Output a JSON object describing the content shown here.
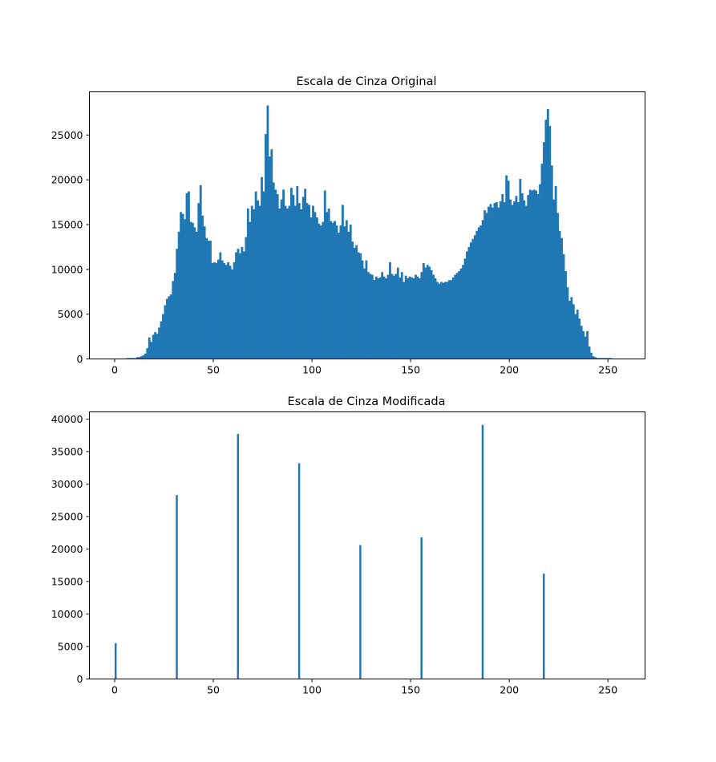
{
  "colors": {
    "bar": "#1f77b4",
    "axes": "#000000",
    "background": "#ffffff"
  },
  "chart_data": [
    {
      "type": "bar",
      "title": "Escala de Cinza Original",
      "xlabel": "",
      "ylabel": "",
      "xlim": [
        -12.8,
        268.8
      ],
      "ylim": [
        0,
        29820
      ],
      "xticks": [
        0,
        50,
        100,
        150,
        200,
        250
      ],
      "yticks": [
        0,
        5000,
        10000,
        15000,
        20000,
        25000
      ],
      "grid": false,
      "bin_start": 0,
      "bin_width": 1,
      "values": [
        0,
        0,
        0,
        0,
        0,
        0,
        100,
        100,
        100,
        100,
        100,
        200,
        200,
        300,
        400,
        600,
        1200,
        2400,
        1900,
        2700,
        3000,
        2800,
        3500,
        4200,
        5000,
        6000,
        6700,
        7000,
        7200,
        8700,
        9600,
        12300,
        14200,
        16400,
        16200,
        15600,
        18500,
        18700,
        15300,
        15200,
        14700,
        14200,
        17400,
        19400,
        16000,
        14800,
        13500,
        13200,
        13200,
        10700,
        10800,
        10700,
        11100,
        11900,
        11000,
        10700,
        10500,
        10800,
        10400,
        10000,
        10800,
        11900,
        12300,
        11800,
        12500,
        12000,
        13600,
        16800,
        15300,
        17100,
        16700,
        18700,
        17700,
        17100,
        20300,
        18700,
        25100,
        28300,
        22600,
        23400,
        19700,
        18900,
        18400,
        16800,
        17800,
        18900,
        17100,
        16800,
        17100,
        19100,
        18300,
        17100,
        19300,
        17400,
        16700,
        18100,
        19000,
        17400,
        17200,
        15800,
        17100,
        16400,
        15800,
        15100,
        14900,
        15300,
        18800,
        16400,
        16800,
        15400,
        15200,
        15400,
        14900,
        14100,
        14900,
        17200,
        14800,
        15500,
        14200,
        15000,
        13100,
        12400,
        12700,
        11900,
        11800,
        11000,
        10100,
        11000,
        9700,
        9500,
        9400,
        8800,
        9200,
        9000,
        9100,
        9700,
        9200,
        9000,
        9400,
        10800,
        9500,
        9300,
        9500,
        10200,
        9100,
        9700,
        8600,
        9300,
        9000,
        9200,
        9100,
        9000,
        9400,
        9200,
        9000,
        9700,
        10700,
        10200,
        10500,
        10300,
        9900,
        9400,
        9000,
        8600,
        8400,
        8600,
        8500,
        8600,
        8600,
        8800,
        8800,
        9100,
        9400,
        9600,
        9800,
        10100,
        10500,
        11200,
        12000,
        12500,
        13000,
        13400,
        13800,
        14300,
        14700,
        14900,
        15500,
        16600,
        16300,
        17000,
        17300,
        16900,
        17400,
        17500,
        16900,
        17600,
        18400,
        17500,
        20500,
        19900,
        17800,
        17200,
        17600,
        18200,
        17500,
        20100,
        18500,
        17700,
        17100,
        18300,
        18900,
        18800,
        18900,
        18800,
        18400,
        19500,
        21800,
        24200,
        26700,
        27900,
        26000,
        21600,
        17800,
        19300,
        16300,
        14300,
        13500,
        11700,
        9800,
        8000,
        6500,
        6900,
        6100,
        5000,
        5500,
        4500,
        3700,
        3100,
        2500,
        3100,
        1400,
        700,
        300,
        200,
        100,
        100,
        100,
        100,
        100,
        100,
        100,
        100,
        0,
        0,
        0,
        0
      ]
    },
    {
      "type": "bar",
      "title": "Escala de Cinza Modificada",
      "xlabel": "",
      "ylabel": "",
      "xlim": [
        -12.8,
        268.8
      ],
      "ylim": [
        0,
        41100
      ],
      "xticks": [
        0,
        50,
        100,
        150,
        200,
        250
      ],
      "yticks": [
        0,
        5000,
        10000,
        15000,
        20000,
        25000,
        30000,
        35000,
        40000
      ],
      "grid": false,
      "bar_width": 1,
      "x": [
        0,
        31,
        62,
        93,
        124,
        155,
        186,
        217
      ],
      "values": [
        5500,
        28300,
        37700,
        33200,
        20600,
        21800,
        39100,
        16200
      ]
    }
  ]
}
